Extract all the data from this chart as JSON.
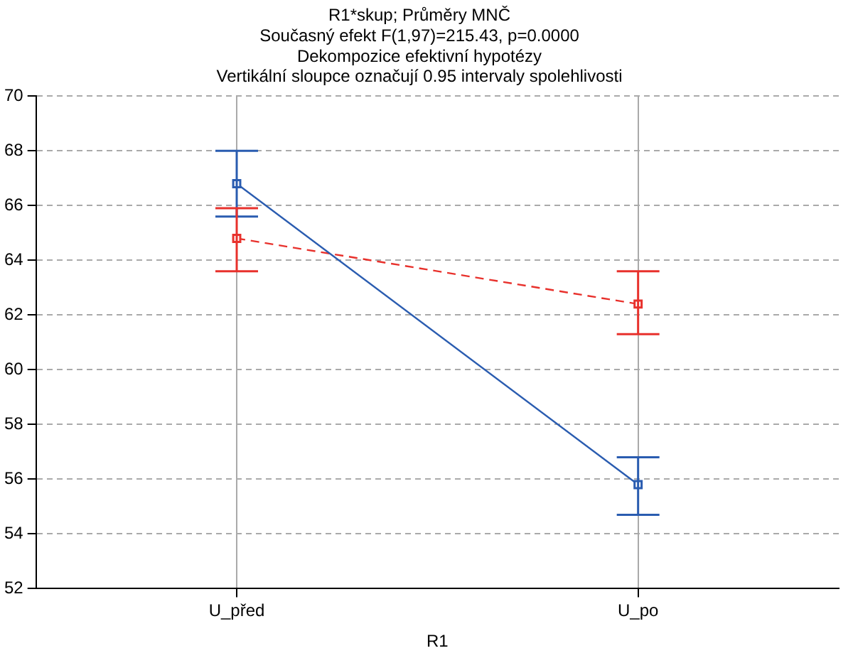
{
  "chart_data": {
    "type": "line",
    "title": "R1*skup; Průměry MNČ",
    "subtitle": "Současný efekt F(1,97)=215.43, p=0.0000\nDekompozice efektivní hypotézy\nVertikální sloupce označují 0.95 intervaly spolehlivosti",
    "xlabel": "R1",
    "categories": [
      "U_před",
      "U_po"
    ],
    "series": [
      {
        "color": "#2a5cb0",
        "values": [
          66.8,
          55.8
        ],
        "errors": [
          [
            65.6,
            68.0
          ],
          [
            54.7,
            56.8
          ]
        ],
        "line_style": "solid"
      },
      {
        "color": "#e8312c",
        "values": [
          64.8,
          62.4
        ],
        "errors": [
          [
            63.6,
            65.9
          ],
          [
            61.3,
            63.6
          ]
        ],
        "line_style": "dashed"
      }
    ],
    "ylim": [
      52,
      70
    ],
    "yticks": [
      52,
      54,
      56,
      58,
      60,
      62,
      64,
      66,
      68,
      70
    ],
    "grid": true,
    "marker": "square",
    "legend": false
  }
}
